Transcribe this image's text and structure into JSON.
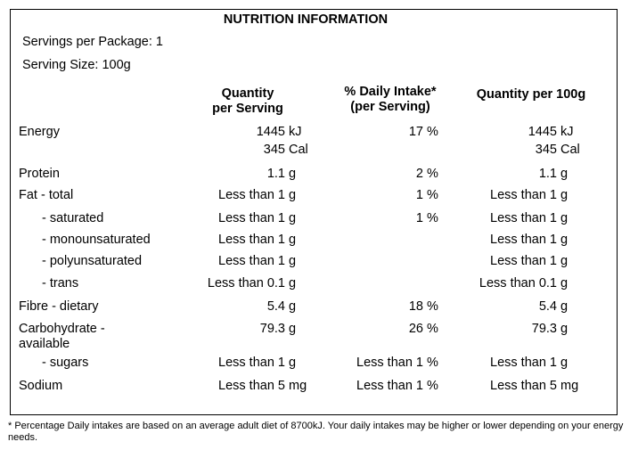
{
  "panel": {
    "title": "NUTRITION INFORMATION",
    "servings_per_package": "Servings per Package: 1",
    "serving_size": "Serving Size: 100g"
  },
  "headers": {
    "per_serving": "Quantity\nper Serving",
    "daily_intake": "% Daily Intake*\n(per Serving)",
    "per_100g": "Quantity per 100g"
  },
  "rows": [
    {
      "label": "Energy",
      "q": "1445",
      "qu": "kJ",
      "q2": "345",
      "qu2": "Cal",
      "di": "17",
      "diu": "%",
      "p": "1445",
      "pu": "kJ",
      "p2": "345",
      "pu2": "Cal"
    },
    {
      "label": "Protein",
      "q": "1.1",
      "qu": "g",
      "di": "2",
      "diu": "%",
      "p": "1.1",
      "pu": "g"
    },
    {
      "label": "Fat - total",
      "q": "Less than 1",
      "qu": "g",
      "di": "1",
      "diu": "%",
      "p": "Less than 1",
      "pu": "g"
    },
    {
      "label": "- saturated",
      "q": "Less than 1",
      "qu": "g",
      "di": "1",
      "diu": "%",
      "p": "Less than 1",
      "pu": "g"
    },
    {
      "label": "- monounsaturated",
      "q": "Less than 1",
      "qu": "g",
      "p": "Less than 1",
      "pu": "g"
    },
    {
      "label": "- polyunsaturated",
      "q": "Less than 1",
      "qu": "g",
      "p": "Less than 1",
      "pu": "g"
    },
    {
      "label": "- trans",
      "q": "Less than 0.1",
      "qu": "g",
      "p": "Less than 0.1",
      "pu": "g"
    },
    {
      "label": "Fibre - dietary",
      "q": "5.4",
      "qu": "g",
      "di": "18",
      "diu": "%",
      "p": "5.4",
      "pu": "g"
    },
    {
      "label": "Carbohydrate -\navailable",
      "q": "79.3",
      "qu": "g",
      "di": "26",
      "diu": "%",
      "p": "79.3",
      "pu": "g"
    },
    {
      "label": "- sugars",
      "q": "Less than 1",
      "qu": "g",
      "di": "Less than 1",
      "diu": "%",
      "p": "Less than 1",
      "pu": "g"
    },
    {
      "label": "Sodium",
      "q": "Less than 5",
      "qu": "mg",
      "di": "Less than 1",
      "diu": "%",
      "p": "Less than 5",
      "pu": "mg"
    }
  ],
  "footnote": "* Percentage Daily intakes are based on an average adult diet of 8700kJ. Your daily intakes may be higher or lower depending on your energy needs."
}
